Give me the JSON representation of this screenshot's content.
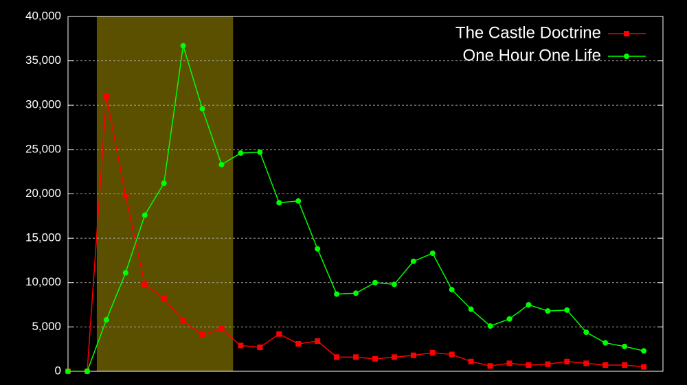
{
  "chart_data": {
    "type": "line",
    "x": [
      0,
      1,
      2,
      3,
      4,
      5,
      6,
      7,
      8,
      9,
      10,
      11,
      12,
      13,
      14,
      15,
      16,
      17,
      18,
      19,
      20,
      21,
      22,
      23,
      24,
      25,
      26,
      27,
      28,
      29,
      30
    ],
    "series": [
      {
        "name": "The Castle Doctrine",
        "color": "#ff0000",
        "marker": "square",
        "values": [
          0,
          0,
          31000,
          19800,
          9800,
          8200,
          5700,
          4100,
          4800,
          2900,
          2700,
          4200,
          3100,
          3400,
          1600,
          1600,
          1400,
          1600,
          1800,
          2100,
          1900,
          1100,
          600,
          900,
          700,
          800,
          1100,
          900,
          700,
          700,
          500
        ]
      },
      {
        "name": "One Hour One Life",
        "color": "#00ff00",
        "marker": "circle",
        "values": [
          0,
          0,
          5800,
          11100,
          17600,
          21200,
          36700,
          29600,
          23300,
          24600,
          24700,
          19000,
          19200,
          13800,
          8700,
          8800,
          10000,
          9800,
          12400,
          13300,
          9200,
          7000,
          5100,
          5900,
          7500,
          6800,
          6900,
          4400,
          3200,
          2800,
          2300
        ]
      }
    ],
    "xlim": [
      0,
      31
    ],
    "ylim": [
      0,
      40000
    ],
    "yticks": [
      0,
      {
        "value": 5000,
        "label": "5,000"
      },
      {
        "value": 10000,
        "label": "10,000"
      },
      {
        "value": 15000,
        "label": "15,000"
      },
      {
        "value": 20000,
        "label": "20,000"
      },
      {
        "value": 25000,
        "label": "25,000"
      },
      {
        "value": 30000,
        "label": "30,000"
      },
      {
        "value": 35000,
        "label": "35,000"
      },
      {
        "value": 40000,
        "label": "40,000"
      }
    ],
    "grid": true,
    "legend": "top-right",
    "highlight": {
      "range": [
        1.5,
        8.6
      ],
      "color": "#5a5000"
    }
  }
}
